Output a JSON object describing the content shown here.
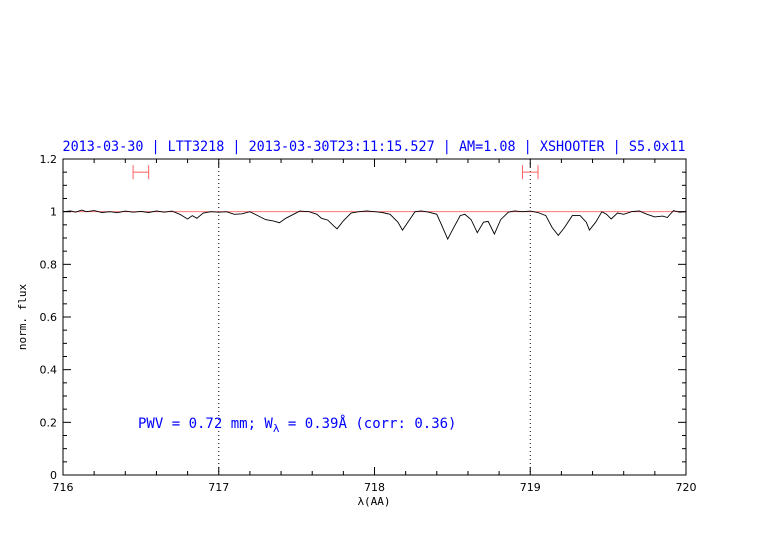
{
  "chart_data": {
    "type": "line",
    "title": "2013-03-30 | LTT3218 | 2013-03-30T23:11:15.527 | AM=1.08 | XSHOOTER | S5.0x11",
    "xlabel": "λ(AA)",
    "ylabel": "norm. flux",
    "xlim": [
      716,
      720
    ],
    "ylim": [
      0,
      1.2
    ],
    "x_ticks": [
      "716",
      "717",
      "718",
      "719",
      "720"
    ],
    "y_ticks": [
      "0",
      "0.2",
      "0.4",
      "0.6",
      "0.8",
      "1",
      "1.2"
    ],
    "annotation": {
      "prefix": "PWV = 0.72 mm; W",
      "sub": "λ",
      "suffix": " = 0.39Å (corr: 0.36)"
    },
    "reference_line": 1.0,
    "vertical_lines": [
      717,
      719
    ],
    "error_bars": [
      {
        "x_from": 716.45,
        "x_to": 716.55,
        "y": 1.15
      },
      {
        "x_from": 718.95,
        "x_to": 719.05,
        "y": 1.15
      }
    ],
    "colors": {
      "spectrum": "#000000",
      "reference": "#ff6060",
      "error_bar": "#ff6060",
      "text": "#0000ff"
    },
    "series": [
      {
        "points": [
          [
            716.0,
            1.0
          ],
          [
            716.05,
            1.003
          ],
          [
            716.08,
            0.998
          ],
          [
            716.12,
            1.006
          ],
          [
            716.15,
            1.0
          ],
          [
            716.2,
            1.004
          ],
          [
            716.25,
            0.997
          ],
          [
            716.3,
            1.0
          ],
          [
            716.35,
            0.996
          ],
          [
            716.4,
            1.002
          ],
          [
            716.45,
            0.998
          ],
          [
            716.5,
            1.001
          ],
          [
            716.55,
            0.997
          ],
          [
            716.6,
            1.003
          ],
          [
            716.65,
            0.998
          ],
          [
            716.7,
            1.002
          ],
          [
            716.75,
            0.99
          ],
          [
            716.8,
            0.972
          ],
          [
            716.83,
            0.985
          ],
          [
            716.86,
            0.975
          ],
          [
            716.9,
            0.995
          ],
          [
            716.95,
            1.0
          ],
          [
            717.0,
            0.998
          ],
          [
            717.05,
            1.0
          ],
          [
            717.1,
            0.99
          ],
          [
            717.15,
            0.992
          ],
          [
            717.2,
            1.0
          ],
          [
            717.25,
            0.985
          ],
          [
            717.3,
            0.97
          ],
          [
            717.35,
            0.965
          ],
          [
            717.39,
            0.958
          ],
          [
            717.43,
            0.975
          ],
          [
            717.48,
            0.99
          ],
          [
            717.52,
            1.002
          ],
          [
            717.58,
            1.0
          ],
          [
            717.63,
            0.99
          ],
          [
            717.66,
            0.975
          ],
          [
            717.7,
            0.968
          ],
          [
            717.74,
            0.945
          ],
          [
            717.76,
            0.935
          ],
          [
            717.8,
            0.965
          ],
          [
            717.85,
            0.995
          ],
          [
            717.9,
            1.0
          ],
          [
            717.95,
            1.003
          ],
          [
            718.0,
            1.0
          ],
          [
            718.05,
            0.997
          ],
          [
            718.1,
            0.99
          ],
          [
            718.15,
            0.96
          ],
          [
            718.18,
            0.93
          ],
          [
            718.22,
            0.965
          ],
          [
            718.26,
            1.0
          ],
          [
            718.3,
            1.003
          ],
          [
            718.35,
            0.998
          ],
          [
            718.4,
            0.99
          ],
          [
            718.43,
            0.95
          ],
          [
            718.47,
            0.896
          ],
          [
            718.5,
            0.93
          ],
          [
            718.55,
            0.985
          ],
          [
            718.58,
            0.99
          ],
          [
            718.62,
            0.97
          ],
          [
            718.66,
            0.92
          ],
          [
            718.7,
            0.96
          ],
          [
            718.73,
            0.963
          ],
          [
            718.77,
            0.915
          ],
          [
            718.81,
            0.97
          ],
          [
            718.86,
            0.998
          ],
          [
            718.9,
            1.003
          ],
          [
            718.95,
            1.0
          ],
          [
            719.0,
            1.002
          ],
          [
            719.05,
            0.997
          ],
          [
            719.1,
            0.985
          ],
          [
            719.14,
            0.94
          ],
          [
            719.18,
            0.91
          ],
          [
            719.22,
            0.94
          ],
          [
            719.27,
            0.985
          ],
          [
            719.32,
            0.985
          ],
          [
            719.36,
            0.96
          ],
          [
            719.38,
            0.93
          ],
          [
            719.42,
            0.96
          ],
          [
            719.46,
            1.0
          ],
          [
            719.49,
            0.99
          ],
          [
            719.52,
            0.972
          ],
          [
            719.56,
            0.995
          ],
          [
            719.6,
            0.99
          ],
          [
            719.65,
            1.0
          ],
          [
            719.7,
            1.003
          ],
          [
            719.75,
            0.99
          ],
          [
            719.8,
            0.98
          ],
          [
            719.85,
            0.983
          ],
          [
            719.88,
            0.978
          ],
          [
            719.92,
            1.004
          ],
          [
            719.96,
            0.998
          ],
          [
            720.0,
            1.0
          ]
        ]
      }
    ]
  }
}
